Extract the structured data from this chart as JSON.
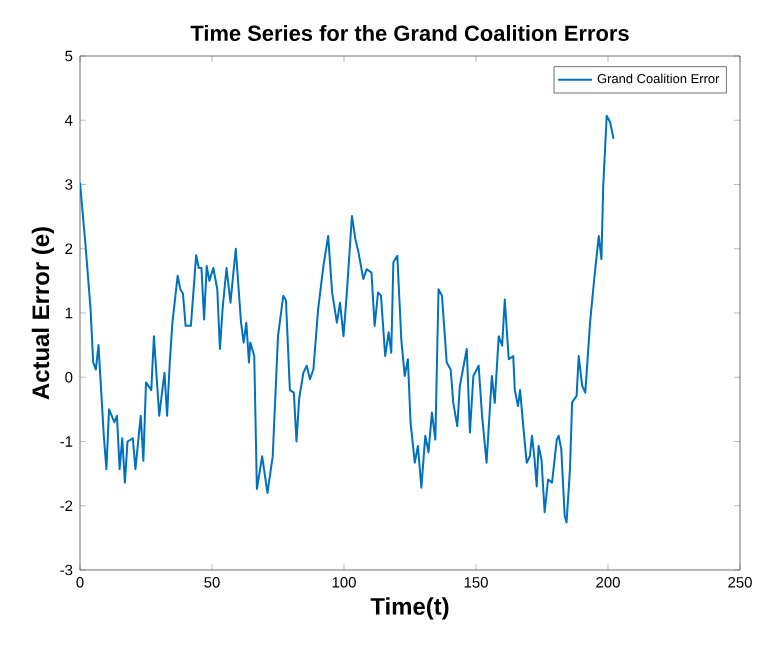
{
  "chart_data": {
    "type": "line",
    "title": "Time Series for the Grand Coalition Errors",
    "xlabel": "Time(t)",
    "ylabel": "Actual Error (e)",
    "x": [
      0,
      2,
      4,
      5,
      6,
      7,
      8,
      9,
      10,
      11,
      13,
      14,
      15,
      16,
      17,
      18,
      20,
      21,
      23,
      24,
      25,
      27,
      28,
      30,
      32,
      33,
      34,
      35,
      37,
      38,
      39,
      40,
      42,
      44,
      45,
      46,
      47,
      48,
      49,
      50.5,
      52,
      53,
      54,
      55.5,
      57,
      59,
      61,
      62,
      63,
      64,
      64.5,
      66,
      67,
      69,
      71,
      73,
      75,
      77,
      78,
      79.5,
      81,
      82,
      83,
      84.6,
      85.9,
      87.1,
      88.4,
      90.2,
      92.2,
      94,
      95.5,
      97.3,
      98.5,
      99.8,
      101,
      103,
      104.3,
      105.5,
      107.3,
      108.6,
      110.4,
      111.6,
      112.9,
      114,
      115.6,
      116.9,
      117.9,
      118.7,
      120.2,
      121.7,
      123,
      124.2,
      125.2,
      126.8,
      128,
      129.3,
      130.8,
      132,
      133.3,
      134.6,
      135.8,
      137.1,
      138.9,
      140.4,
      141.4,
      142.9,
      143.9,
      146.5,
      147.7,
      149,
      151,
      152.3,
      154,
      156,
      157.1,
      158.6,
      159.9,
      160.9,
      162.4,
      164.1,
      164.7,
      165.9,
      166.7,
      167.9,
      169.2,
      170.4,
      171.2,
      172.2,
      173,
      173.7,
      174.8,
      176,
      177.3,
      178.8,
      180.6,
      181.3,
      182.3,
      183.6,
      184.3,
      185.6,
      186.4,
      188.1,
      188.9,
      190.2,
      191.4,
      193.2,
      194.9,
      196.5,
      197.5,
      198.2,
      199.5,
      200.8,
      202.1
    ],
    "series": [
      {
        "name": "Grand Coalition Error",
        "color": "#0072bd",
        "values": [
          3.03,
          2.1,
          1.06,
          0.23,
          0.12,
          0.5,
          -0.2,
          -0.9,
          -1.43,
          -0.5,
          -0.7,
          -0.6,
          -1.43,
          -0.95,
          -1.64,
          -1.0,
          -0.95,
          -1.43,
          -0.6,
          -1.3,
          -0.08,
          -0.2,
          0.64,
          -0.6,
          0.07,
          -0.6,
          0.23,
          0.85,
          1.58,
          1.37,
          1.3,
          0.8,
          0.8,
          1.9,
          1.7,
          1.7,
          0.9,
          1.73,
          1.5,
          1.7,
          1.37,
          0.44,
          1.06,
          1.7,
          1.16,
          2.0,
          0.85,
          0.54,
          0.85,
          0.23,
          0.54,
          0.33,
          -1.74,
          -1.23,
          -1.8,
          -1.23,
          0.64,
          1.27,
          1.2,
          -0.2,
          -0.24,
          -1.0,
          -0.34,
          0.07,
          0.18,
          -0.03,
          0.12,
          1.06,
          1.73,
          2.2,
          1.32,
          0.85,
          1.16,
          0.64,
          1.27,
          2.51,
          2.15,
          1.94,
          1.53,
          1.68,
          1.63,
          0.8,
          1.32,
          1.27,
          0.33,
          0.7,
          0.38,
          1.79,
          1.89,
          0.59,
          0.02,
          0.28,
          -0.7,
          -1.33,
          -1.07,
          -1.72,
          -0.91,
          -1.17,
          -0.55,
          -0.97,
          1.37,
          1.27,
          0.23,
          0.12,
          -0.4,
          -0.76,
          -0.13,
          0.44,
          -0.86,
          0.02,
          0.18,
          -0.6,
          -1.33,
          0.02,
          -0.4,
          0.64,
          0.49,
          1.21,
          0.28,
          0.33,
          -0.2,
          -0.45,
          -0.2,
          -0.76,
          -1.33,
          -1.23,
          -0.91,
          -1.28,
          -1.7,
          -1.07,
          -1.28,
          -2.1,
          -1.59,
          -1.64,
          -0.97,
          -0.91,
          -1.12,
          -2.16,
          -2.26,
          -1.43,
          -0.39,
          -0.29,
          0.33,
          -0.13,
          -0.24,
          0.85,
          1.58,
          2.2,
          1.84,
          2.98,
          4.07,
          3.97,
          3.71
        ]
      }
    ],
    "xlim": [
      0,
      250
    ],
    "ylim": [
      -3,
      5
    ],
    "xticks": [
      0,
      50,
      100,
      150,
      200,
      250
    ],
    "yticks": [
      -3,
      -2,
      -1,
      0,
      1,
      2,
      3,
      4,
      5
    ],
    "legend": "top right"
  }
}
